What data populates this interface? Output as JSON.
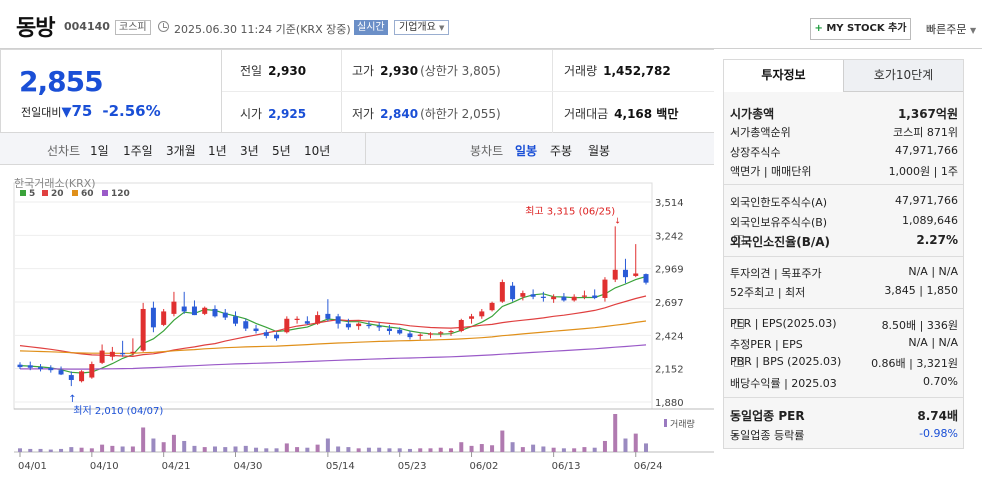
{
  "header": {
    "name": "동방",
    "code": "004140",
    "market": "코스피",
    "time": "2025.06.30 11:24 기준(KRX 장중)",
    "realtime": "실시간",
    "company_info": "기업개요",
    "mystock": "MY STOCK 추가",
    "quick_order": "빠른주문"
  },
  "price": {
    "current": "2,855",
    "change_label": "전일대비",
    "change": "75",
    "change_pct": "-2.56%"
  },
  "stats": {
    "prev_label": "전일",
    "prev": "2,930",
    "high_label": "고가",
    "high": "2,930",
    "upper_limit": "(상한가 3,805)",
    "volume_label": "거래량",
    "volume": "1,452,782",
    "open_label": "시가",
    "open": "2,925",
    "low_label": "저가",
    "low": "2,840",
    "lower_limit": "(하한가 2,055)",
    "amount_label": "거래대금",
    "amount": "4,168 백만"
  },
  "tabs": {
    "line_label": "선차트",
    "periods": [
      "1일",
      "1주일",
      "3개월",
      "1년",
      "3년",
      "5년",
      "10년"
    ],
    "candle_label": "봉차트",
    "candle_periods": [
      "일봉",
      "주봉",
      "월봉"
    ]
  },
  "colors": {
    "up": "#e03030",
    "down": "#2a5bd7",
    "ma5": "#3aa33a",
    "ma20": "#e04040",
    "ma60": "#e0901a",
    "ma120": "#9a5ac8"
  },
  "chart_data": {
    "type": "candlestick",
    "source": "한국거래소(KRX)",
    "legend": [
      "5",
      "20",
      "60",
      "120"
    ],
    "y_ticks": [
      "3,514",
      "3,242",
      "2,969",
      "2,697",
      "2,424",
      "2,152",
      "1,880"
    ],
    "y_range": [
      1880,
      3514
    ],
    "x_ticks": [
      "04/01",
      "04/10",
      "04/21",
      "04/30",
      "05/14",
      "05/23",
      "06/02",
      "06/13",
      "06/24"
    ],
    "high_annotation": "최고 3,315 (06/25)",
    "low_annotation": "최저 2,010 (04/07)",
    "volume_label": "거래량",
    "candles": [
      {
        "o": 2185,
        "h": 2205,
        "l": 2150,
        "c": 2165
      },
      {
        "o": 2180,
        "h": 2210,
        "l": 2140,
        "c": 2160
      },
      {
        "o": 2165,
        "h": 2190,
        "l": 2130,
        "c": 2150
      },
      {
        "o": 2160,
        "h": 2180,
        "l": 2120,
        "c": 2140
      },
      {
        "o": 2140,
        "h": 2170,
        "l": 2100,
        "c": 2105
      },
      {
        "o": 2100,
        "h": 2130,
        "l": 2010,
        "c": 2060
      },
      {
        "o": 2050,
        "h": 2140,
        "l": 2040,
        "c": 2130
      },
      {
        "o": 2080,
        "h": 2210,
        "l": 2070,
        "c": 2190
      },
      {
        "o": 2200,
        "h": 2350,
        "l": 2190,
        "c": 2300
      },
      {
        "o": 2250,
        "h": 2330,
        "l": 2220,
        "c": 2290
      },
      {
        "o": 2280,
        "h": 2380,
        "l": 2250,
        "c": 2270
      },
      {
        "o": 2280,
        "h": 2400,
        "l": 2260,
        "c": 2290
      },
      {
        "o": 2300,
        "h": 2690,
        "l": 2290,
        "c": 2640
      },
      {
        "o": 2650,
        "h": 2700,
        "l": 2450,
        "c": 2490
      },
      {
        "o": 2510,
        "h": 2640,
        "l": 2500,
        "c": 2620
      },
      {
        "o": 2600,
        "h": 2780,
        "l": 2580,
        "c": 2700
      },
      {
        "o": 2660,
        "h": 2780,
        "l": 2600,
        "c": 2620
      },
      {
        "o": 2660,
        "h": 2710,
        "l": 2590,
        "c": 2590
      },
      {
        "o": 2600,
        "h": 2660,
        "l": 2590,
        "c": 2650
      },
      {
        "o": 2640,
        "h": 2670,
        "l": 2570,
        "c": 2580
      },
      {
        "o": 2610,
        "h": 2640,
        "l": 2550,
        "c": 2570
      },
      {
        "o": 2580,
        "h": 2620,
        "l": 2500,
        "c": 2520
      },
      {
        "o": 2540,
        "h": 2560,
        "l": 2460,
        "c": 2480
      },
      {
        "o": 2480,
        "h": 2510,
        "l": 2440,
        "c": 2460
      },
      {
        "o": 2450,
        "h": 2470,
        "l": 2400,
        "c": 2420
      },
      {
        "o": 2430,
        "h": 2450,
        "l": 2380,
        "c": 2400
      },
      {
        "o": 2450,
        "h": 2580,
        "l": 2440,
        "c": 2560
      },
      {
        "o": 2550,
        "h": 2580,
        "l": 2520,
        "c": 2560
      },
      {
        "o": 2540,
        "h": 2580,
        "l": 2510,
        "c": 2520
      },
      {
        "o": 2520,
        "h": 2620,
        "l": 2510,
        "c": 2590
      },
      {
        "o": 2600,
        "h": 2720,
        "l": 2540,
        "c": 2560
      },
      {
        "o": 2580,
        "h": 2600,
        "l": 2480,
        "c": 2520
      },
      {
        "o": 2520,
        "h": 2560,
        "l": 2470,
        "c": 2490
      },
      {
        "o": 2500,
        "h": 2530,
        "l": 2470,
        "c": 2520
      },
      {
        "o": 2510,
        "h": 2540,
        "l": 2480,
        "c": 2500
      },
      {
        "o": 2500,
        "h": 2530,
        "l": 2460,
        "c": 2490
      },
      {
        "o": 2480,
        "h": 2510,
        "l": 2430,
        "c": 2460
      },
      {
        "o": 2470,
        "h": 2490,
        "l": 2430,
        "c": 2440
      },
      {
        "o": 2440,
        "h": 2460,
        "l": 2390,
        "c": 2410
      },
      {
        "o": 2420,
        "h": 2440,
        "l": 2390,
        "c": 2430
      },
      {
        "o": 2430,
        "h": 2450,
        "l": 2400,
        "c": 2440
      },
      {
        "o": 2440,
        "h": 2460,
        "l": 2410,
        "c": 2450
      },
      {
        "o": 2450,
        "h": 2470,
        "l": 2420,
        "c": 2460
      },
      {
        "o": 2460,
        "h": 2560,
        "l": 2450,
        "c": 2550
      },
      {
        "o": 2560,
        "h": 2600,
        "l": 2520,
        "c": 2580
      },
      {
        "o": 2580,
        "h": 2640,
        "l": 2560,
        "c": 2620
      },
      {
        "o": 2630,
        "h": 2700,
        "l": 2620,
        "c": 2690
      },
      {
        "o": 2700,
        "h": 2880,
        "l": 2690,
        "c": 2860
      },
      {
        "o": 2830,
        "h": 2860,
        "l": 2700,
        "c": 2720
      },
      {
        "o": 2740,
        "h": 2790,
        "l": 2710,
        "c": 2770
      },
      {
        "o": 2760,
        "h": 2800,
        "l": 2720,
        "c": 2740
      },
      {
        "o": 2740,
        "h": 2780,
        "l": 2700,
        "c": 2730
      },
      {
        "o": 2720,
        "h": 2760,
        "l": 2690,
        "c": 2740
      },
      {
        "o": 2740,
        "h": 2770,
        "l": 2700,
        "c": 2710
      },
      {
        "o": 2710,
        "h": 2760,
        "l": 2700,
        "c": 2740
      },
      {
        "o": 2740,
        "h": 2790,
        "l": 2720,
        "c": 2750
      },
      {
        "o": 2750,
        "h": 2800,
        "l": 2720,
        "c": 2730
      },
      {
        "o": 2730,
        "h": 2900,
        "l": 2700,
        "c": 2880
      },
      {
        "o": 2880,
        "h": 3315,
        "l": 2860,
        "c": 2960
      },
      {
        "o": 2960,
        "h": 3050,
        "l": 2850,
        "c": 2900
      },
      {
        "o": 2910,
        "h": 3170,
        "l": 2900,
        "c": 2930
      },
      {
        "o": 2925,
        "h": 2930,
        "l": 2840,
        "c": 2855
      }
    ],
    "volumes": [
      6,
      5,
      5,
      4,
      5,
      8,
      7,
      6,
      12,
      10,
      9,
      9,
      40,
      22,
      16,
      28,
      18,
      10,
      8,
      9,
      8,
      9,
      10,
      7,
      6,
      6,
      14,
      8,
      7,
      12,
      22,
      9,
      8,
      6,
      7,
      7,
      6,
      6,
      5,
      6,
      6,
      7,
      6,
      16,
      10,
      13,
      11,
      35,
      16,
      8,
      12,
      9,
      7,
      6,
      6,
      8,
      7,
      18,
      62,
      22,
      30,
      14
    ]
  },
  "invest": {
    "tab1": "투자정보",
    "tab2": "호가10단계",
    "rows": [
      {
        "l": "시가총액",
        "r": "1,367억원",
        "bold": true
      },
      {
        "l": "시가총액순위",
        "r": "코스피 871위"
      },
      {
        "l": "상장주식수",
        "r": "47,971,766"
      },
      {
        "l": "액면가 | 매매단위",
        "r": "1,000원 | 1주"
      },
      {
        "l": "외국인한도주식수(A)",
        "r": "47,971,766"
      },
      {
        "l": "외국인보유주식수(B)",
        "r": "1,089,646"
      },
      {
        "l": "외국인소진율(B/A)",
        "r": "2.27%",
        "bold": true
      },
      {
        "l": "투자의견 | 목표주가",
        "r": "N/A | N/A"
      },
      {
        "l": "52주최고 | 최저",
        "r": "3,845 | 1,850"
      },
      {
        "l": "PER | EPS(2025.03)",
        "r": "8.50배 | 336원"
      },
      {
        "l": "추정PER | EPS",
        "r": "N/A | N/A"
      },
      {
        "l": "PBR | BPS (2025.03)",
        "r": "0.86배 | 3,321원"
      },
      {
        "l": "배당수익률 | 2025.03",
        "r": "0.70%"
      },
      {
        "l": "동일업종 PER",
        "r": "8.74배",
        "bold": true
      },
      {
        "l": "동일업종 등락률",
        "r": "-0.98%",
        "blue": true
      }
    ]
  }
}
